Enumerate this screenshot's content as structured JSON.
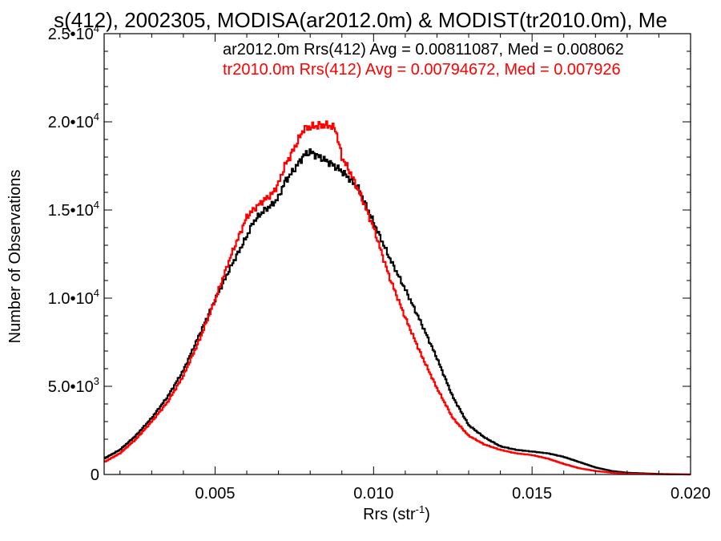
{
  "chart_data": {
    "type": "line",
    "step": true,
    "title": "s(412), 2002305, MODISA(ar2012.0m) & MODIST(tr2010.0m), Me",
    "xlabel": "Rrs (str",
    "xlabel_sup": "-1",
    "xlabel_close": ")",
    "ylabel": "Number of Observations",
    "xlim": [
      0.0015,
      0.02
    ],
    "ylim": [
      0,
      25000
    ],
    "x_ticks": [
      {
        "value": 0.005,
        "label": "0.005"
      },
      {
        "value": 0.01,
        "label": "0.010"
      },
      {
        "value": 0.015,
        "label": "0.015"
      },
      {
        "value": 0.02,
        "label": "0.020"
      }
    ],
    "y_ticks": [
      {
        "value": 0,
        "base": "0",
        "exp": ""
      },
      {
        "value": 5000,
        "base": "5.0•10",
        "exp": "3"
      },
      {
        "value": 10000,
        "base": "1.0•10",
        "exp": "4"
      },
      {
        "value": 15000,
        "base": "1.5•10",
        "exp": "4"
      },
      {
        "value": 20000,
        "base": "2.0•10",
        "exp": "4"
      },
      {
        "value": 25000,
        "base": "2.5•10",
        "exp": "4"
      }
    ],
    "grid": false,
    "legend_position": "top-right",
    "annotations": [
      {
        "text": "ar2012.0m Rrs(412) Avg = 0.00811087, Med = 0.008062",
        "color": "#000000"
      },
      {
        "text": "tr2010.0m Rrs(412) Avg = 0.00794672, Med = 0.007926",
        "color": "#ff0000"
      }
    ],
    "series": [
      {
        "color": "#000000",
        "points": [
          [
            0.0015,
            900
          ],
          [
            0.002,
            1400
          ],
          [
            0.0025,
            2200
          ],
          [
            0.003,
            3200
          ],
          [
            0.0035,
            4400
          ],
          [
            0.004,
            5900
          ],
          [
            0.0045,
            7900
          ],
          [
            0.005,
            9900
          ],
          [
            0.0055,
            11800
          ],
          [
            0.006,
            13500
          ],
          [
            0.0062,
            14300
          ],
          [
            0.0065,
            14900
          ],
          [
            0.0068,
            15300
          ],
          [
            0.007,
            15700
          ],
          [
            0.0072,
            16600
          ],
          [
            0.0075,
            17300
          ],
          [
            0.0078,
            18100
          ],
          [
            0.008,
            18300
          ],
          [
            0.0083,
            18000
          ],
          [
            0.0086,
            17700
          ],
          [
            0.009,
            17200
          ],
          [
            0.0095,
            16300
          ],
          [
            0.01,
            14300
          ],
          [
            0.0105,
            12300
          ],
          [
            0.011,
            10500
          ],
          [
            0.0115,
            8600
          ],
          [
            0.012,
            6600
          ],
          [
            0.0125,
            4400
          ],
          [
            0.013,
            2800
          ],
          [
            0.0135,
            2100
          ],
          [
            0.014,
            1600
          ],
          [
            0.0145,
            1400
          ],
          [
            0.015,
            1300
          ],
          [
            0.0155,
            1200
          ],
          [
            0.016,
            1000
          ],
          [
            0.0165,
            700
          ],
          [
            0.017,
            400
          ],
          [
            0.0175,
            200
          ],
          [
            0.018,
            100
          ],
          [
            0.019,
            30
          ],
          [
            0.02,
            0
          ]
        ]
      },
      {
        "color": "#ff0000",
        "points": [
          [
            0.0015,
            700
          ],
          [
            0.002,
            1200
          ],
          [
            0.0025,
            2000
          ],
          [
            0.003,
            3000
          ],
          [
            0.0035,
            4100
          ],
          [
            0.004,
            5600
          ],
          [
            0.0045,
            7600
          ],
          [
            0.005,
            9900
          ],
          [
            0.0055,
            12400
          ],
          [
            0.006,
            14600
          ],
          [
            0.0062,
            15000
          ],
          [
            0.0065,
            15500
          ],
          [
            0.0068,
            15900
          ],
          [
            0.007,
            16500
          ],
          [
            0.0072,
            17500
          ],
          [
            0.0075,
            18500
          ],
          [
            0.0078,
            19600
          ],
          [
            0.008,
            19700
          ],
          [
            0.0083,
            19800
          ],
          [
            0.0086,
            19800
          ],
          [
            0.0088,
            19600
          ],
          [
            0.009,
            18000
          ],
          [
            0.0093,
            17000
          ],
          [
            0.0096,
            15800
          ],
          [
            0.01,
            14000
          ],
          [
            0.0105,
            11200
          ],
          [
            0.011,
            8900
          ],
          [
            0.0115,
            6800
          ],
          [
            0.012,
            4900
          ],
          [
            0.0125,
            3200
          ],
          [
            0.013,
            2200
          ],
          [
            0.0135,
            1700
          ],
          [
            0.014,
            1400
          ],
          [
            0.0145,
            1200
          ],
          [
            0.015,
            1100
          ],
          [
            0.0155,
            900
          ],
          [
            0.016,
            600
          ],
          [
            0.0165,
            350
          ],
          [
            0.017,
            200
          ],
          [
            0.0175,
            100
          ],
          [
            0.018,
            50
          ],
          [
            0.019,
            10
          ],
          [
            0.02,
            0
          ]
        ]
      }
    ]
  }
}
